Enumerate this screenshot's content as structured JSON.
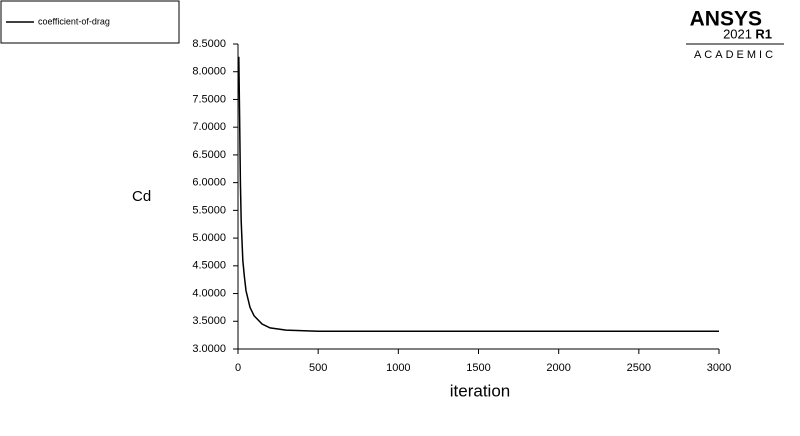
{
  "chart_data": {
    "type": "line",
    "x": [
      5,
      10,
      15,
      20,
      30,
      40,
      50,
      75,
      100,
      150,
      200,
      300,
      500,
      1000,
      2000,
      3000
    ],
    "series": [
      {
        "name": "coefficient-of-drag",
        "color": "#000000",
        "values": [
          8.27,
          7.2,
          6.0,
          5.3,
          4.6,
          4.3,
          4.05,
          3.75,
          3.6,
          3.45,
          3.38,
          3.34,
          3.32,
          3.32,
          3.32,
          3.32
        ]
      }
    ],
    "xlabel": "iteration",
    "ylabel": "Cd",
    "xlim": [
      0,
      3000
    ],
    "xticks": [
      0,
      500,
      1000,
      1500,
      2000,
      2500,
      3000
    ],
    "ylim": [
      3,
      8.5
    ],
    "yticks": [
      {
        "value": 3,
        "label": "3.0000"
      },
      {
        "value": 3.5,
        "label": "3.5000"
      },
      {
        "value": 4,
        "label": "4.0000"
      },
      {
        "value": 4.5,
        "label": "4.5000"
      },
      {
        "value": 5,
        "label": "5.0000"
      },
      {
        "value": 5.5,
        "label": "5.5000"
      },
      {
        "value": 6,
        "label": "6.0000"
      },
      {
        "value": 6.5,
        "label": "6.5000"
      },
      {
        "value": 7,
        "label": "7.0000"
      },
      {
        "value": 7.5,
        "label": "7.5000"
      },
      {
        "value": 8,
        "label": "8.0000"
      },
      {
        "value": 8.5,
        "label": "8.5000"
      }
    ],
    "legend": "top-left"
  },
  "logo": {
    "name": "ANSYS",
    "version": "2021",
    "release": "R1",
    "edition": "ACADEMIC"
  }
}
